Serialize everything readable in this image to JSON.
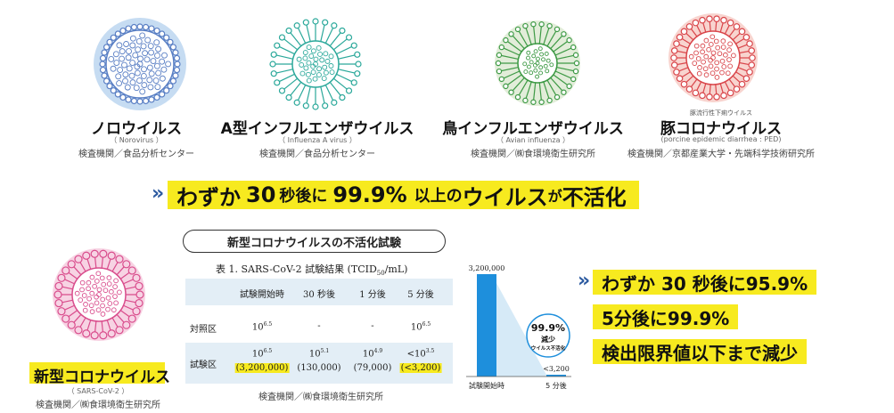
{
  "viruses": [
    {
      "title": "ノロウイルス",
      "latin": "（ Norovirus ）",
      "agency": "検査機関／食品分析センター",
      "color": "#5a7fc4",
      "halo": "#b8d3ef",
      "icon": "norovirus-icon"
    },
    {
      "title": "A型インフルエンザウイルス",
      "latin": "（ Influenza A virus ）",
      "agency": "検査機関／食品分析センター",
      "color": "#2aa89a",
      "halo": "#ffffff",
      "icon": "influenza-a-icon"
    },
    {
      "title": "鳥インフルエンザウイルス",
      "latin": "（ Avian influenza ）",
      "agency": "検査機関／㈱食環境衛生研究所",
      "color": "#3e9a45",
      "halo": "#dbe9cf",
      "icon": "avian-influenza-icon"
    },
    {
      "title": "豚コロナウイルス",
      "ruby": "豚流行性下痢ウイルス",
      "latin": "(porcine epidemic diarrhea : PED)",
      "agency": "検査機関／京都産業大学・先端科学技術研究所",
      "color": "#d9454a",
      "halo": "#f6c9c3",
      "icon": "porcine-coronavirus-icon"
    }
  ],
  "headline": {
    "chevron": "»",
    "parts": [
      "わずか",
      "30",
      "秒後に",
      "99.9%",
      "以上の",
      "ウイルス",
      "が",
      "不活化"
    ]
  },
  "covid": {
    "title": "新型コロナウイルス",
    "latin": "（ SARS-CoV-2 ）",
    "agency": "検査機関／㈱食環境衛生研究所",
    "color": "#d94c8c",
    "halo": "#f5c8dc"
  },
  "test": {
    "pill": "新型コロナウイルスの不活化試験",
    "caption_main": "表 1. SARS-CoV-2 試験結果 (TCID",
    "caption_sub": "50",
    "caption_end": "/mL)",
    "headers": [
      "試験開始時",
      "30 秒後",
      "1 分後",
      "5 分後"
    ],
    "rows": [
      {
        "label": "対照区",
        "cells": [
          {
            "base": "10",
            "exp": "6.5"
          },
          {
            "plain": "-"
          },
          {
            "plain": "-"
          },
          {
            "base": "10",
            "exp": "6.5"
          }
        ]
      },
      {
        "label": "試験区",
        "cells": [
          {
            "base": "10",
            "exp": "6.5",
            "sub": "(3,200,000)",
            "hl": true
          },
          {
            "base": "10",
            "exp": "5.1",
            "sub": "(130,000)"
          },
          {
            "base": "10",
            "exp": "4.9",
            "sub": "(79,000)"
          },
          {
            "base": "<10",
            "exp": "3.5",
            "sub": "(<3,200)",
            "hl": true
          }
        ]
      }
    ],
    "agency": "検査機関／㈱食環境衛生研究所"
  },
  "chart_data": {
    "type": "bar",
    "categories": [
      "試験開始時",
      "5 分後"
    ],
    "values": [
      3200000,
      3200
    ],
    "value_labels": [
      "3,200,000",
      "<3,200"
    ],
    "badge": {
      "pct": "99.9%",
      "line1": "減少",
      "line2": "ウイルス不活化"
    },
    "bar_color": "#1e8fdc"
  },
  "result": {
    "chevron": "»",
    "lines": [
      "わずか 30 秒後に95.9%",
      "5分後に99.9%",
      "検出限界値以下まで減少"
    ]
  }
}
